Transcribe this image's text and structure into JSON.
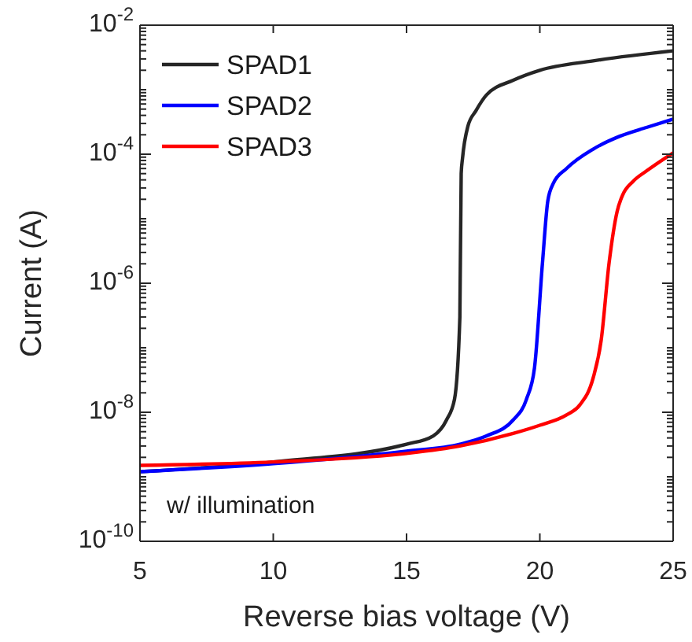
{
  "chart_data": {
    "type": "line",
    "xlabel": "Reverse bias voltage (V)",
    "ylabel": "Current (A)",
    "log": "y",
    "xlim": [
      5,
      25
    ],
    "ylim": [
      1e-10,
      0.01
    ],
    "xticks": [
      5,
      10,
      15,
      20,
      25
    ],
    "yticks": [
      {
        "value": 1e-10,
        "label": "10$^{-10}$"
      },
      {
        "value": 2e-10,
        "label": null
      },
      {
        "value": 3e-10,
        "label": null
      },
      {
        "value": 4e-10,
        "label": null
      },
      {
        "value": 5e-10,
        "label": null
      },
      {
        "value": 6e-10,
        "label": null
      },
      {
        "value": 7e-10,
        "label": null
      },
      {
        "value": 8e-10,
        "label": null
      },
      {
        "value": 9e-10,
        "label": null
      },
      {
        "value": 1e-09,
        "label": null
      },
      {
        "value": 2e-09,
        "label": null
      },
      {
        "value": 3e-09,
        "label": null
      },
      {
        "value": 4e-09,
        "label": null
      },
      {
        "value": 5e-09,
        "label": null
      },
      {
        "value": 6e-09,
        "label": null
      },
      {
        "value": 7e-09,
        "label": null
      },
      {
        "value": 8e-09,
        "label": null
      },
      {
        "value": 9e-09,
        "label": null
      },
      {
        "value": 1e-08,
        "label": "10$^{-8}$"
      },
      {
        "value": 2e-08,
        "label": null
      },
      {
        "value": 3e-08,
        "label": null
      },
      {
        "value": 4e-08,
        "label": null
      },
      {
        "value": 5e-08,
        "label": null
      },
      {
        "value": 6e-08,
        "label": null
      },
      {
        "value": 7e-08,
        "label": null
      },
      {
        "value": 8e-08,
        "label": null
      },
      {
        "value": 9e-08,
        "label": null
      },
      {
        "value": 1e-07,
        "label": null
      },
      {
        "value": 2e-07,
        "label": null
      },
      {
        "value": 3e-07,
        "label": null
      },
      {
        "value": 4e-07,
        "label": null
      },
      {
        "value": 5e-07,
        "label": null
      },
      {
        "value": 6e-07,
        "label": null
      },
      {
        "value": 7e-07,
        "label": null
      },
      {
        "value": 8e-07,
        "label": null
      },
      {
        "value": 9e-07,
        "label": null
      },
      {
        "value": 1e-06,
        "label": "10$^{-6}$"
      },
      {
        "value": 2e-06,
        "label": null
      },
      {
        "value": 3e-06,
        "label": null
      },
      {
        "value": 4e-06,
        "label": null
      },
      {
        "value": 5e-06,
        "label": null
      },
      {
        "value": 6e-06,
        "label": null
      },
      {
        "value": 7e-06,
        "label": null
      },
      {
        "value": 8e-06,
        "label": null
      },
      {
        "value": 9e-06,
        "label": null
      },
      {
        "value": 1e-05,
        "label": null
      },
      {
        "value": 2e-05,
        "label": null
      },
      {
        "value": 3e-05,
        "label": null
      },
      {
        "value": 4e-05,
        "label": null
      },
      {
        "value": 5e-05,
        "label": null
      },
      {
        "value": 6e-05,
        "label": null
      },
      {
        "value": 7e-05,
        "label": null
      },
      {
        "value": 8e-05,
        "label": null
      },
      {
        "value": 9e-05,
        "label": null
      },
      {
        "value": 0.0001,
        "label": "10$^{-4}$"
      },
      {
        "value": 0.0002,
        "label": null
      },
      {
        "value": 0.0003,
        "label": null
      },
      {
        "value": 0.0004,
        "label": null
      },
      {
        "value": 0.0005,
        "label": null
      },
      {
        "value": 0.0006,
        "label": null
      },
      {
        "value": 0.0007,
        "label": null
      },
      {
        "value": 0.0008,
        "label": null
      },
      {
        "value": 0.0009,
        "label": null
      },
      {
        "value": 0.001,
        "label": null
      },
      {
        "value": 0.002,
        "label": null
      },
      {
        "value": 0.003,
        "label": null
      },
      {
        "value": 0.004,
        "label": null
      },
      {
        "value": 0.005,
        "label": null
      },
      {
        "value": 0.006,
        "label": null
      },
      {
        "value": 0.007,
        "label": null
      },
      {
        "value": 0.008,
        "label": null
      },
      {
        "value": 0.009,
        "label": null
      },
      {
        "value": 0.01,
        "label": "10$^{-2}$"
      }
    ],
    "grid": false,
    "legend": "top left",
    "line_style": "solid",
    "marker": "none",
    "annotations": [
      "w/ illumination"
    ],
    "series": [
      {
        "name": "SPAD1",
        "color": "#262626",
        "x": [
          5,
          10,
          15,
          16,
          16.5,
          16.8,
          17,
          17.05,
          17.1,
          17.3,
          17.6,
          18,
          19,
          20,
          22,
          25
        ],
        "values": [
          1.2e-09,
          1.7e-09,
          3.2e-09,
          4.3e-09,
          7.6e-09,
          1.6e-08,
          3e-07,
          5e-05,
          8.7e-05,
          0.00027,
          0.00047,
          0.00083,
          0.0014,
          0.002,
          0.0028,
          0.004
        ]
      },
      {
        "name": "SPAD2",
        "color": "#0000ff",
        "x": [
          5,
          10,
          15,
          17,
          18,
          19,
          19.5,
          19.8,
          20.1,
          20.3,
          20.5,
          21,
          22,
          23,
          24,
          25
        ],
        "values": [
          1.2e-09,
          1.6e-09,
          2.5e-09,
          3.2e-09,
          4.3e-09,
          7.6e-09,
          1.6e-08,
          4.9e-08,
          2.1e-06,
          1.9e-05,
          3.5e-05,
          6e-05,
          0.00012,
          0.00019,
          0.00026,
          0.00035
        ]
      },
      {
        "name": "SPAD3",
        "color": "#ff0000",
        "x": [
          5,
          10,
          15,
          17,
          19,
          20,
          21,
          21.5,
          22,
          22.3,
          22.6,
          22.9,
          23.1,
          23.5,
          24,
          25
        ],
        "values": [
          1.5e-09,
          1.7e-09,
          2.3e-09,
          3e-09,
          4.7e-09,
          6.3e-09,
          9.1e-09,
          1.3e-08,
          3.4e-08,
          1.3e-07,
          2.1e-06,
          1.3e-05,
          2.3e-05,
          3.8e-05,
          5.5e-05,
          0.000105
        ]
      }
    ]
  }
}
